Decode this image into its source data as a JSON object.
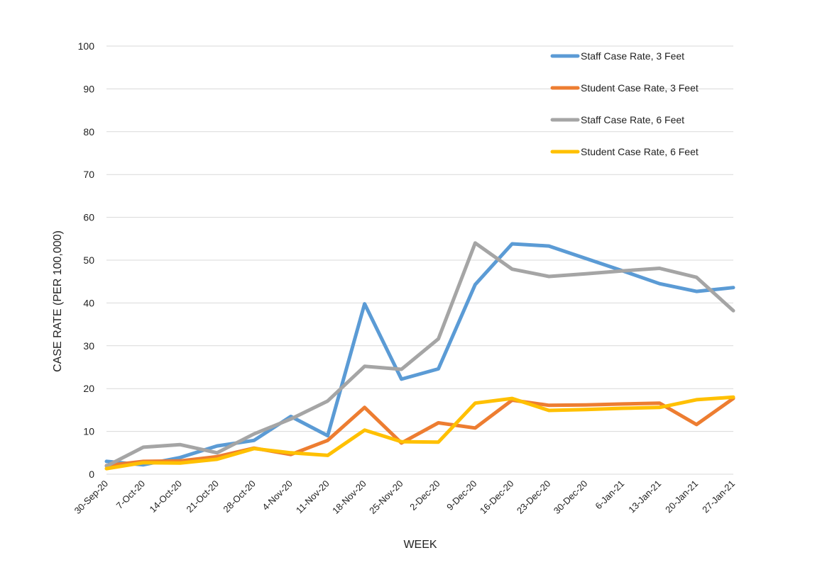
{
  "chart_data": {
    "type": "line",
    "title": "",
    "xlabel": "WEEK",
    "ylabel": "CASE RATE (PER 100,000)",
    "ylim": [
      0,
      100
    ],
    "yticks": [
      0,
      10,
      20,
      30,
      40,
      50,
      60,
      70,
      80,
      90,
      100
    ],
    "grid": true,
    "legend_position": "top-right",
    "categories": [
      "30-Sep-20",
      "7-Oct-20",
      "14-Oct-20",
      "21-Oct-20",
      "28-Oct-20",
      "4-Nov-20",
      "11-Nov-20",
      "18-Nov-20",
      "25-Nov-20",
      "2-Dec-20",
      "9-Dec-20",
      "16-Dec-20",
      "23-Dec-20",
      "30-Dec-20",
      "6-Jan-21",
      "13-Jan-21",
      "20-Jan-21",
      "27-Jan-21"
    ],
    "series": [
      {
        "name": "Staff Case Rate, 3 Feet",
        "color": "#5b9bd5",
        "values": [
          3.0,
          2.2,
          3.9,
          6.6,
          7.9,
          13.5,
          9.0,
          39.8,
          22.2,
          24.6,
          44.3,
          53.8,
          53.3,
          50.4,
          47.5,
          44.5,
          42.7,
          43.6
        ]
      },
      {
        "name": "Student Case Rate, 3 Feet",
        "color": "#ed7d31",
        "values": [
          2.0,
          3.0,
          3.1,
          4.1,
          6.1,
          4.6,
          7.9,
          15.6,
          7.3,
          12.0,
          10.8,
          17.3,
          16.1,
          16.2,
          16.4,
          16.6,
          11.6,
          17.7
        ]
      },
      {
        "name": "Staff Case Rate, 6 Feet",
        "color": "#a5a5a5",
        "values": [
          1.9,
          6.3,
          6.9,
          5.0,
          9.4,
          12.9,
          17.1,
          25.2,
          24.5,
          31.6,
          54.0,
          47.9,
          46.2,
          46.8,
          47.5,
          48.1,
          46.0,
          38.2
        ]
      },
      {
        "name": "Student Case Rate, 6 Feet",
        "color": "#ffc000",
        "values": [
          1.3,
          2.7,
          2.6,
          3.5,
          6.0,
          5.0,
          4.4,
          10.3,
          7.6,
          7.5,
          16.6,
          17.7,
          14.9,
          15.1,
          15.4,
          15.6,
          17.4,
          18.0
        ]
      }
    ]
  }
}
